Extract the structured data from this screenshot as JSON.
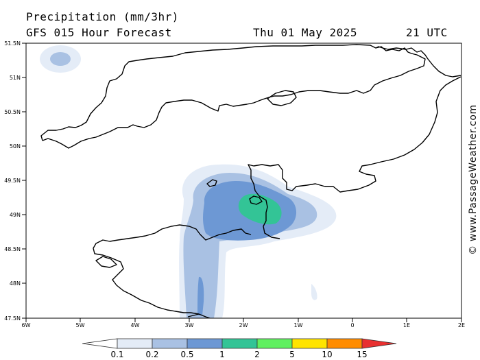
{
  "header": {
    "title": "Precipitation (mm/3hr)",
    "subtitle": "GFS 015 Hour Forecast",
    "date": "Thu 01 May 2025",
    "time": "21 UTC"
  },
  "axes": {
    "lat_labels": [
      "51.5N",
      "51N",
      "50.5N",
      "50N",
      "49.5N",
      "49N",
      "48.5N",
      "48N",
      "47.5N"
    ],
    "lon_labels": [
      "6W",
      "5W",
      "4W",
      "3W",
      "2W",
      "1W",
      "0",
      "1E",
      "2E"
    ],
    "lat_range": [
      47.5,
      51.5
    ],
    "lon_range": [
      -6,
      2
    ]
  },
  "colorbar": {
    "labels": [
      "0.1",
      "0.2",
      "0.5",
      "1",
      "2",
      "5",
      "10",
      "15"
    ],
    "colors": [
      "#ffffff",
      "#e4ecf7",
      "#a9c1e3",
      "#6d98d4",
      "#33c496",
      "#60f060",
      "#ffe400",
      "#ff8c00",
      "#e83030"
    ]
  },
  "watermark": "© www.PassageWeather.com",
  "colors": {
    "light_blue": "#a9c1e3",
    "pale_blue": "#e4ecf7",
    "mid_blue": "#6d98d4",
    "green": "#33c496",
    "coast": "#000000"
  }
}
